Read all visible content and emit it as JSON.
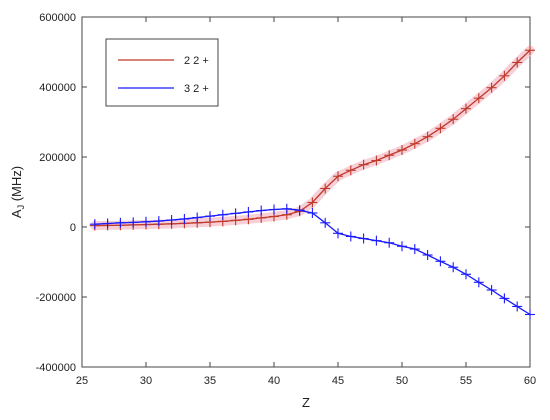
{
  "chart_data": {
    "type": "line",
    "xlabel": "Z",
    "ylabel": "A",
    "ylabel_subscript": "J",
    "ylabel_units": " (MHz)",
    "xlim": [
      25,
      60
    ],
    "ylim": [
      -400000,
      600000
    ],
    "xticks": [
      25,
      30,
      35,
      40,
      45,
      50,
      55,
      60
    ],
    "yticks": [
      -400000,
      -200000,
      0,
      200000,
      400000,
      600000
    ],
    "legend_position": "top-left",
    "grid": false,
    "series": [
      {
        "name": "2 2 +",
        "color": "#c0392b",
        "halo_color": "#f6c7cf",
        "x": [
          26,
          27,
          28,
          29,
          30,
          31,
          32,
          33,
          34,
          35,
          36,
          37,
          38,
          39,
          40,
          41,
          42,
          43,
          44,
          45,
          46,
          47,
          48,
          49,
          50,
          51,
          52,
          53,
          54,
          55,
          56,
          57,
          58,
          59,
          60
        ],
        "y": [
          4000,
          4500,
          5000,
          6000,
          7000,
          8000,
          9000,
          10500,
          12000,
          14000,
          16000,
          19000,
          22000,
          26000,
          30000,
          35000,
          45000,
          70000,
          110000,
          145000,
          162000,
          178000,
          190000,
          205000,
          220000,
          238000,
          258000,
          282000,
          308000,
          338000,
          368000,
          398000,
          432000,
          470000,
          505000
        ]
      },
      {
        "name": "3 2 +",
        "color": "#1a1aff",
        "x": [
          26,
          27,
          28,
          29,
          30,
          31,
          32,
          33,
          34,
          35,
          36,
          37,
          38,
          39,
          40,
          41,
          42,
          43,
          44,
          45,
          46,
          47,
          48,
          49,
          50,
          51,
          52,
          53,
          54,
          55,
          56,
          57,
          58,
          59,
          60
        ],
        "y": [
          8000,
          10000,
          12000,
          13000,
          15000,
          17000,
          20000,
          23000,
          27000,
          31000,
          35000,
          39000,
          43000,
          47000,
          50000,
          52000,
          48000,
          40000,
          12000,
          -18000,
          -27000,
          -33000,
          -39000,
          -45000,
          -55000,
          -63000,
          -80000,
          -98000,
          -115000,
          -135000,
          -158000,
          -180000,
          -204000,
          -227000,
          -250000
        ]
      }
    ]
  }
}
